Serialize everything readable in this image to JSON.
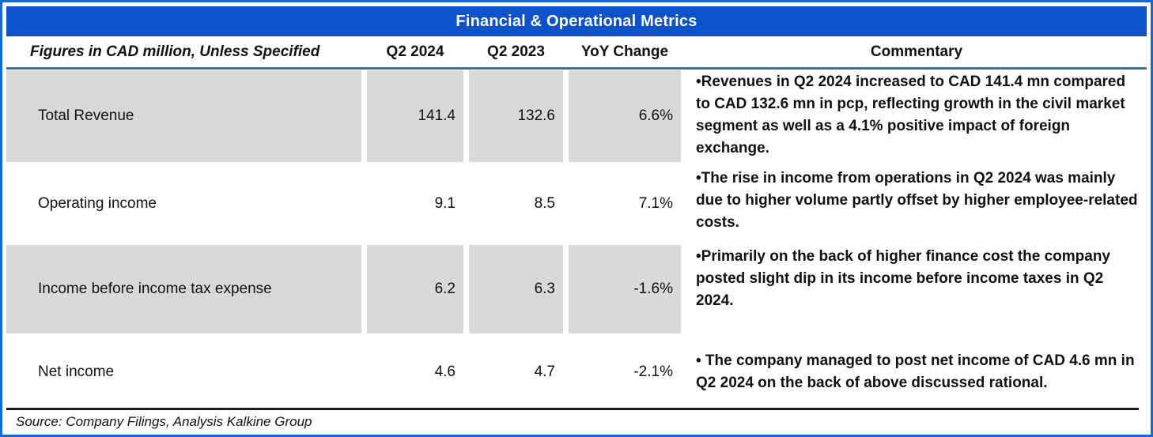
{
  "colors": {
    "title-bg": "#0b52cb",
    "frame-border": "#1668d1",
    "header-underline": "#2e75b6",
    "shade": "#d9d9d9"
  },
  "title": "Financial & Operational Metrics",
  "header": {
    "label": "Figures in CAD million, Unless Specified",
    "q2_2024": "Q2 2024",
    "q2_2023": "Q2 2023",
    "yoy": "YoY Change",
    "commentary": "Commentary"
  },
  "rows": [
    {
      "label": "Total Revenue",
      "q2_2024": "141.4",
      "q2_2023": "132.6",
      "yoy": "6.6%",
      "commentary": "•Revenues in Q2 2024 increased to CAD 141.4 mn compared to CAD 132.6 mn in pcp, reflecting growth in the civil market segment as well as a 4.1% positive impact of foreign exchange."
    },
    {
      "label": "Operating income",
      "q2_2024": "9.1",
      "q2_2023": "8.5",
      "yoy": "7.1%",
      "commentary": "•The rise in income from operations in Q2 2024 was mainly due to higher volume partly offset by higher employee-related costs."
    },
    {
      "label": "Income before income tax expense",
      "q2_2024": "6.2",
      "q2_2023": "6.3",
      "yoy": "-1.6%",
      "commentary": "•Primarily on the back of higher finance cost the company posted slight dip in its income before income taxes in Q2 2024."
    },
    {
      "label": "Net income",
      "q2_2024": "4.6",
      "q2_2023": "4.7",
      "yoy": "-2.1%",
      "commentary": "• The company managed to post net income of CAD 4.6 mn in Q2 2024 on the back of above discussed rational."
    }
  ],
  "source": "Source: Company Filings, Analysis Kalkine Group"
}
